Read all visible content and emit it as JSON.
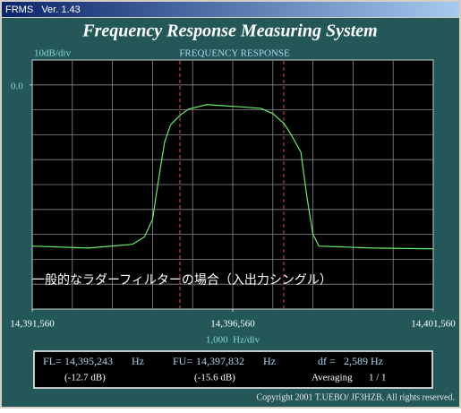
{
  "window": {
    "title": "FRMS   Ver. 1.43"
  },
  "header": {
    "title": "Frequency Response Measuring System"
  },
  "chart_data": {
    "type": "line",
    "title": "FREQUENCY RESPONSE",
    "y_scale_label": "10dB/div",
    "x_scale_label": "1,000  Hz/div",
    "annotation": "一般的なラダーフィルターの場合（入出力シングル）",
    "x": [
      14391560,
      14392960,
      14394060,
      14394360,
      14394560,
      14394710,
      14394860,
      14395010,
      14395260,
      14395460,
      14395910,
      14396560,
      14397260,
      14397560,
      14397840,
      14398010,
      14398260,
      14398410,
      14398560,
      14398710,
      14400060,
      14401560
    ],
    "series": [
      {
        "color": "#66ee66",
        "values": [
          -64.7,
          -65.5,
          -64,
          -61,
          -54,
          -38,
          -23,
          -16,
          -12,
          -9.7,
          -7.9,
          -8.6,
          -9.4,
          -11.5,
          -15.5,
          -19.8,
          -27,
          -45,
          -60,
          -64.7,
          -65.5,
          -65.8
        ]
      }
    ],
    "xlim": [
      14391560,
      14401560
    ],
    "xticks": [
      {
        "value": 14391560,
        "label": "14,391,560"
      },
      {
        "value": 14396560,
        "label": "14,396,560"
      },
      {
        "value": 14401560,
        "label": "14,401,560"
      }
    ],
    "ylim": [
      -90,
      10
    ],
    "yticks": [
      {
        "value": 0,
        "label": "0.0"
      }
    ],
    "grid": true
  },
  "readout": {
    "fl": {
      "prefix": "FL=",
      "value": 14395243,
      "value_label": "14,395,243",
      "unit": "Hz",
      "level": "(-12.7 dB)"
    },
    "fu": {
      "prefix": "FU=",
      "value": 14397832,
      "value_label": "14,397,832",
      "unit": "Hz",
      "level": "(-15.6 dB)"
    },
    "df": {
      "prefix": "df =",
      "value_label": "2,589",
      "unit": "Hz"
    },
    "averaging": {
      "label": "Averaging",
      "value": "1 / 1"
    }
  },
  "footer": {
    "copyright": "Copyright 2001 T.UEBO/ JF3HZB, All rights reserved."
  }
}
